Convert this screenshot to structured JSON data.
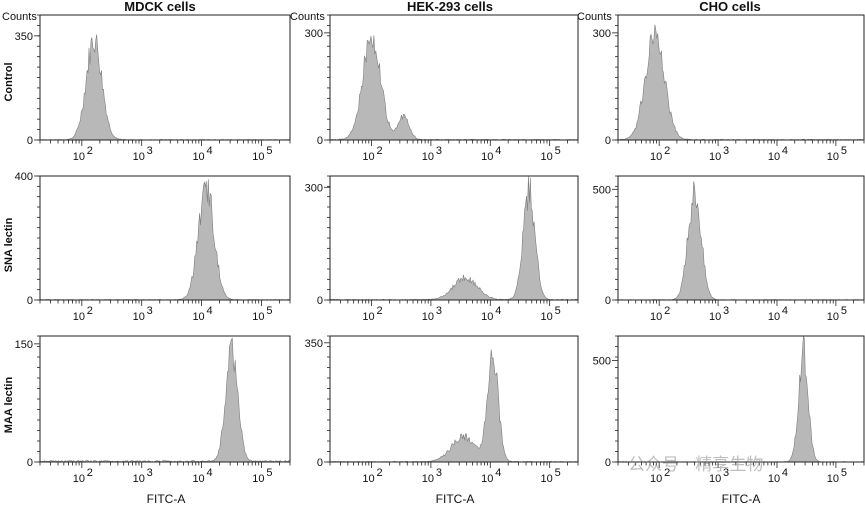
{
  "columns": [
    "MDCK cells",
    "HEK-293 cells",
    "CHO  cells"
  ],
  "rows": [
    "Control",
    "SNA lectin",
    "MAA lectin"
  ],
  "y_axis_label": "Counts",
  "x_axis_label": "FITC-A",
  "x_tick_labels": [
    "10",
    "10",
    "10",
    "10"
  ],
  "x_tick_exponents": [
    "2",
    "3",
    "4",
    "5"
  ],
  "watermark": "公众号 · 精享生物",
  "colors": {
    "histogram_fill": "#b8b8b8",
    "histogram_stroke": "#7d7d7d",
    "frame": "#222222"
  },
  "chart_data": [
    {
      "type": "area",
      "panel": "MDCK Control",
      "xscale": "log",
      "xlim": [
        20,
        300000
      ],
      "ylim": [
        0,
        420
      ],
      "yticks": [
        0,
        350
      ],
      "peaks": [
        {
          "center": 160,
          "width": 0.13,
          "height": 350
        }
      ]
    },
    {
      "type": "area",
      "panel": "HEK-293 Control",
      "xscale": "log",
      "xlim": [
        20,
        300000
      ],
      "ylim": [
        0,
        350
      ],
      "yticks": [
        0,
        300
      ],
      "peaks": [
        {
          "center": 100,
          "width": 0.15,
          "height": 300
        },
        {
          "center": 350,
          "width": 0.09,
          "height": 70
        }
      ]
    },
    {
      "type": "area",
      "panel": "CHO Control",
      "xscale": "log",
      "xlim": [
        20,
        300000
      ],
      "ylim": [
        0,
        350
      ],
      "yticks": [
        0,
        300
      ],
      "peaks": [
        {
          "center": 85,
          "width": 0.16,
          "height": 310
        }
      ]
    },
    {
      "type": "area",
      "panel": "MDCK SNA lectin",
      "xscale": "log",
      "xlim": [
        20,
        300000
      ],
      "ylim": [
        0,
        400
      ],
      "yticks": [
        0,
        400
      ],
      "peaks": [
        {
          "center": 12000,
          "width": 0.13,
          "height": 375
        }
      ]
    },
    {
      "type": "area",
      "panel": "HEK-293 SNA lectin",
      "xscale": "log",
      "xlim": [
        20,
        300000
      ],
      "ylim": [
        0,
        330
      ],
      "yticks": [
        0,
        300
      ],
      "peaks": [
        {
          "center": 45000,
          "width": 0.1,
          "height": 300
        },
        {
          "center": 3800,
          "width": 0.2,
          "height": 60
        }
      ]
    },
    {
      "type": "area",
      "panel": "CHO SNA lectin",
      "xscale": "log",
      "xlim": [
        20,
        300000
      ],
      "ylim": [
        0,
        560
      ],
      "yticks": [
        0,
        500
      ],
      "peaks": [
        {
          "center": 400,
          "width": 0.11,
          "height": 500
        }
      ]
    },
    {
      "type": "area",
      "panel": "MDCK MAA lectin",
      "xscale": "log",
      "xlim": [
        20,
        300000
      ],
      "ylim": [
        0,
        160
      ],
      "yticks": [
        0,
        150
      ],
      "peaks": [
        {
          "center": 32000,
          "width": 0.1,
          "height": 148
        }
      ]
    },
    {
      "type": "area",
      "panel": "HEK-293 MAA lectin",
      "xscale": "log",
      "xlim": [
        20,
        300000
      ],
      "ylim": [
        0,
        370
      ],
      "yticks": [
        0,
        350
      ],
      "peaks": [
        {
          "center": 11000,
          "width": 0.09,
          "height": 330
        },
        {
          "center": 3500,
          "width": 0.2,
          "height": 75
        }
      ]
    },
    {
      "type": "area",
      "panel": "CHO MAA lectin",
      "xscale": "log",
      "xlim": [
        20,
        300000
      ],
      "ylim": [
        0,
        620
      ],
      "yticks": [
        0,
        500
      ],
      "peaks": [
        {
          "center": 28000,
          "width": 0.08,
          "height": 560
        }
      ]
    }
  ]
}
